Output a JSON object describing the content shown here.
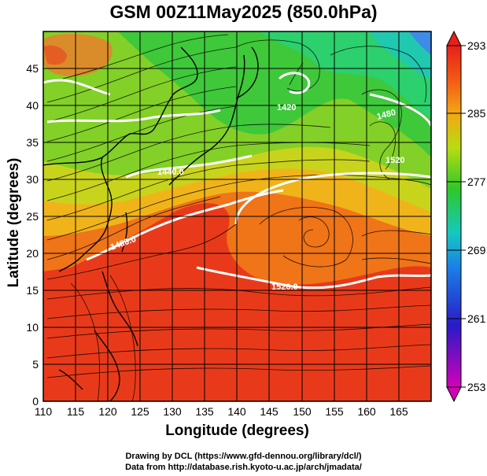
{
  "title": "GSM 00Z11May2025 (850.0hPa)",
  "x_axis": {
    "label": "Longitude (degrees)",
    "range": [
      110,
      170
    ],
    "ticks": [
      "110",
      "115",
      "120",
      "125",
      "130",
      "135",
      "140",
      "145",
      "150",
      "155",
      "160",
      "165"
    ]
  },
  "y_axis": {
    "label": "Latitude (degrees)",
    "range": [
      0,
      50
    ],
    "ticks": [
      "0",
      "5",
      "10",
      "15",
      "20",
      "25",
      "30",
      "35",
      "40",
      "45"
    ]
  },
  "colorbar": {
    "ticks": [
      "253",
      "261",
      "269",
      "277",
      "285",
      "293"
    ],
    "range": [
      253,
      293
    ]
  },
  "contour_labels": [
    "1440.0",
    "1480.0",
    "1520.0",
    "1480",
    "1420",
    "1520"
  ],
  "credits": [
    "Drawing by DCL (https://www.gfd-dennou.org/library/dcl/)",
    "Data from http://database.rish.kyoto-u.ac.jp/arch/jmadata/"
  ],
  "chart_data": {
    "type": "heatmap",
    "title": "GSM 00Z11May2025 (850.0hPa)",
    "xlabel": "Longitude (degrees)",
    "ylabel": "Latitude (degrees)",
    "xlim": [
      110,
      170
    ],
    "ylim": [
      0,
      50
    ],
    "colorbar_range": [
      253,
      293
    ],
    "colorbar_ticks": [
      253,
      261,
      269,
      277,
      285,
      293
    ],
    "overlays": [
      "streamlines",
      "geopotential height contours",
      "coastlines",
      "grid"
    ]
  }
}
